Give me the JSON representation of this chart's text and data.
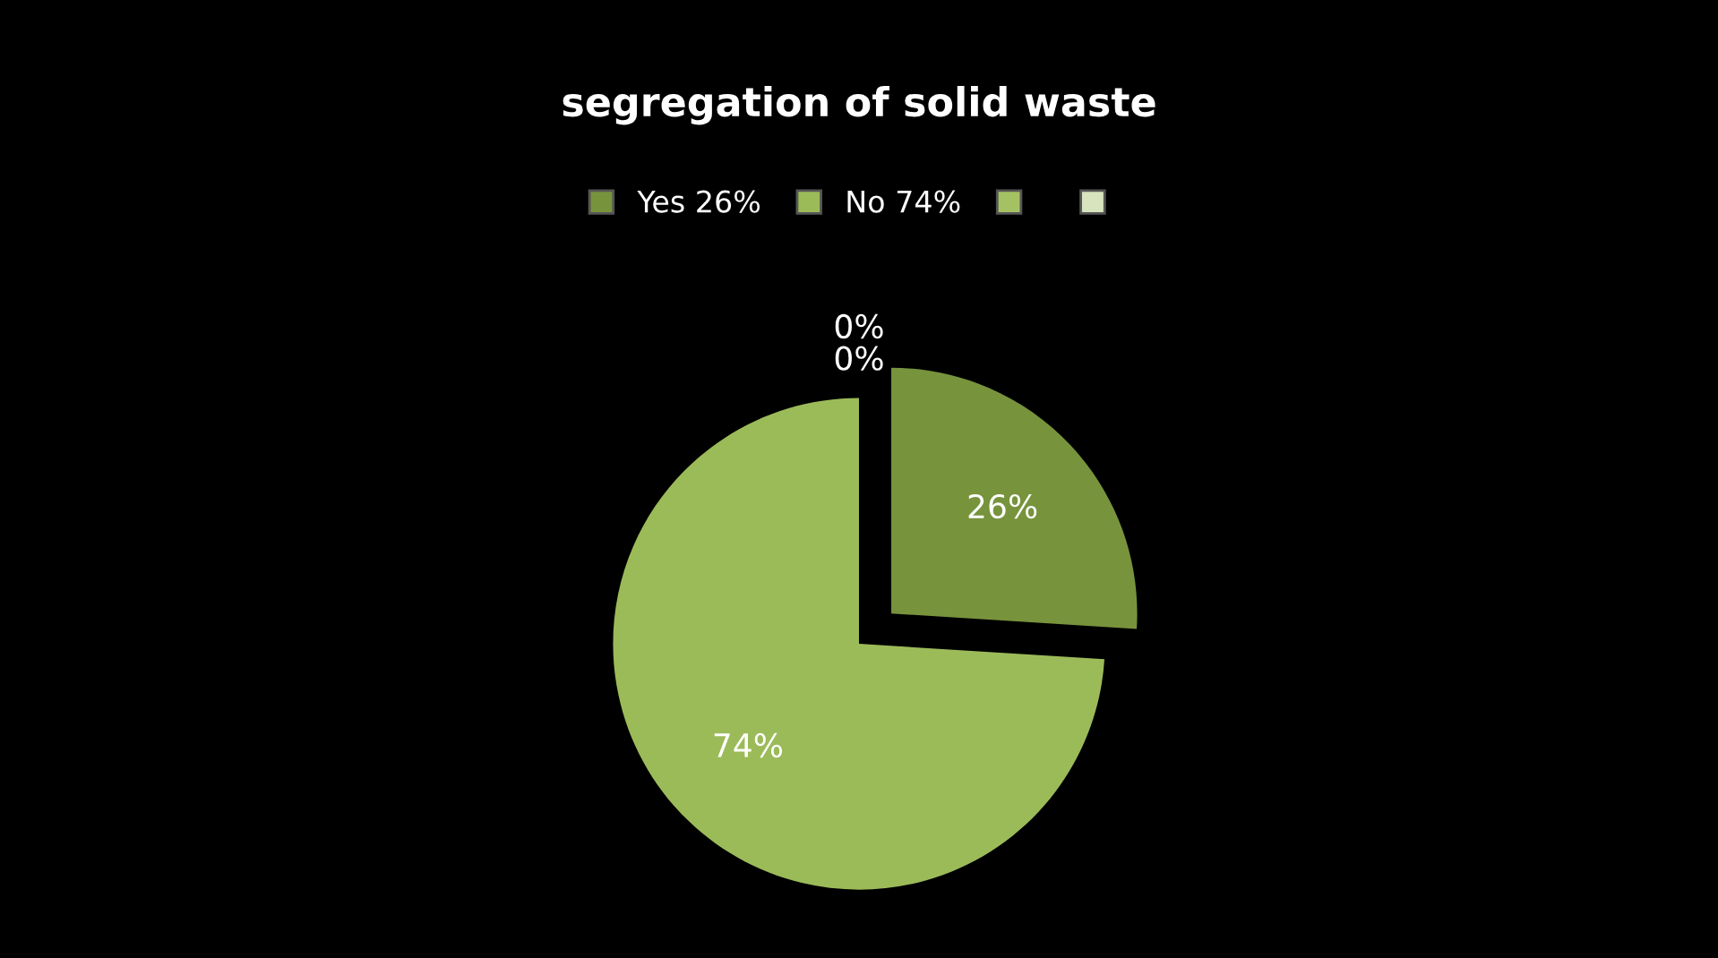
{
  "chart_data": {
    "type": "pie",
    "title": "segregation of solid waste",
    "categories": [
      "Yes 26%",
      "No 74%",
      null,
      null
    ],
    "values": [
      26,
      74,
      0,
      0
    ],
    "colors": [
      "#77933c",
      "#9bbb59",
      "#a4c263",
      "#d7e4bd"
    ],
    "value_labels": [
      "26%",
      "74%",
      "0%",
      "0%"
    ],
    "legend": "top"
  }
}
